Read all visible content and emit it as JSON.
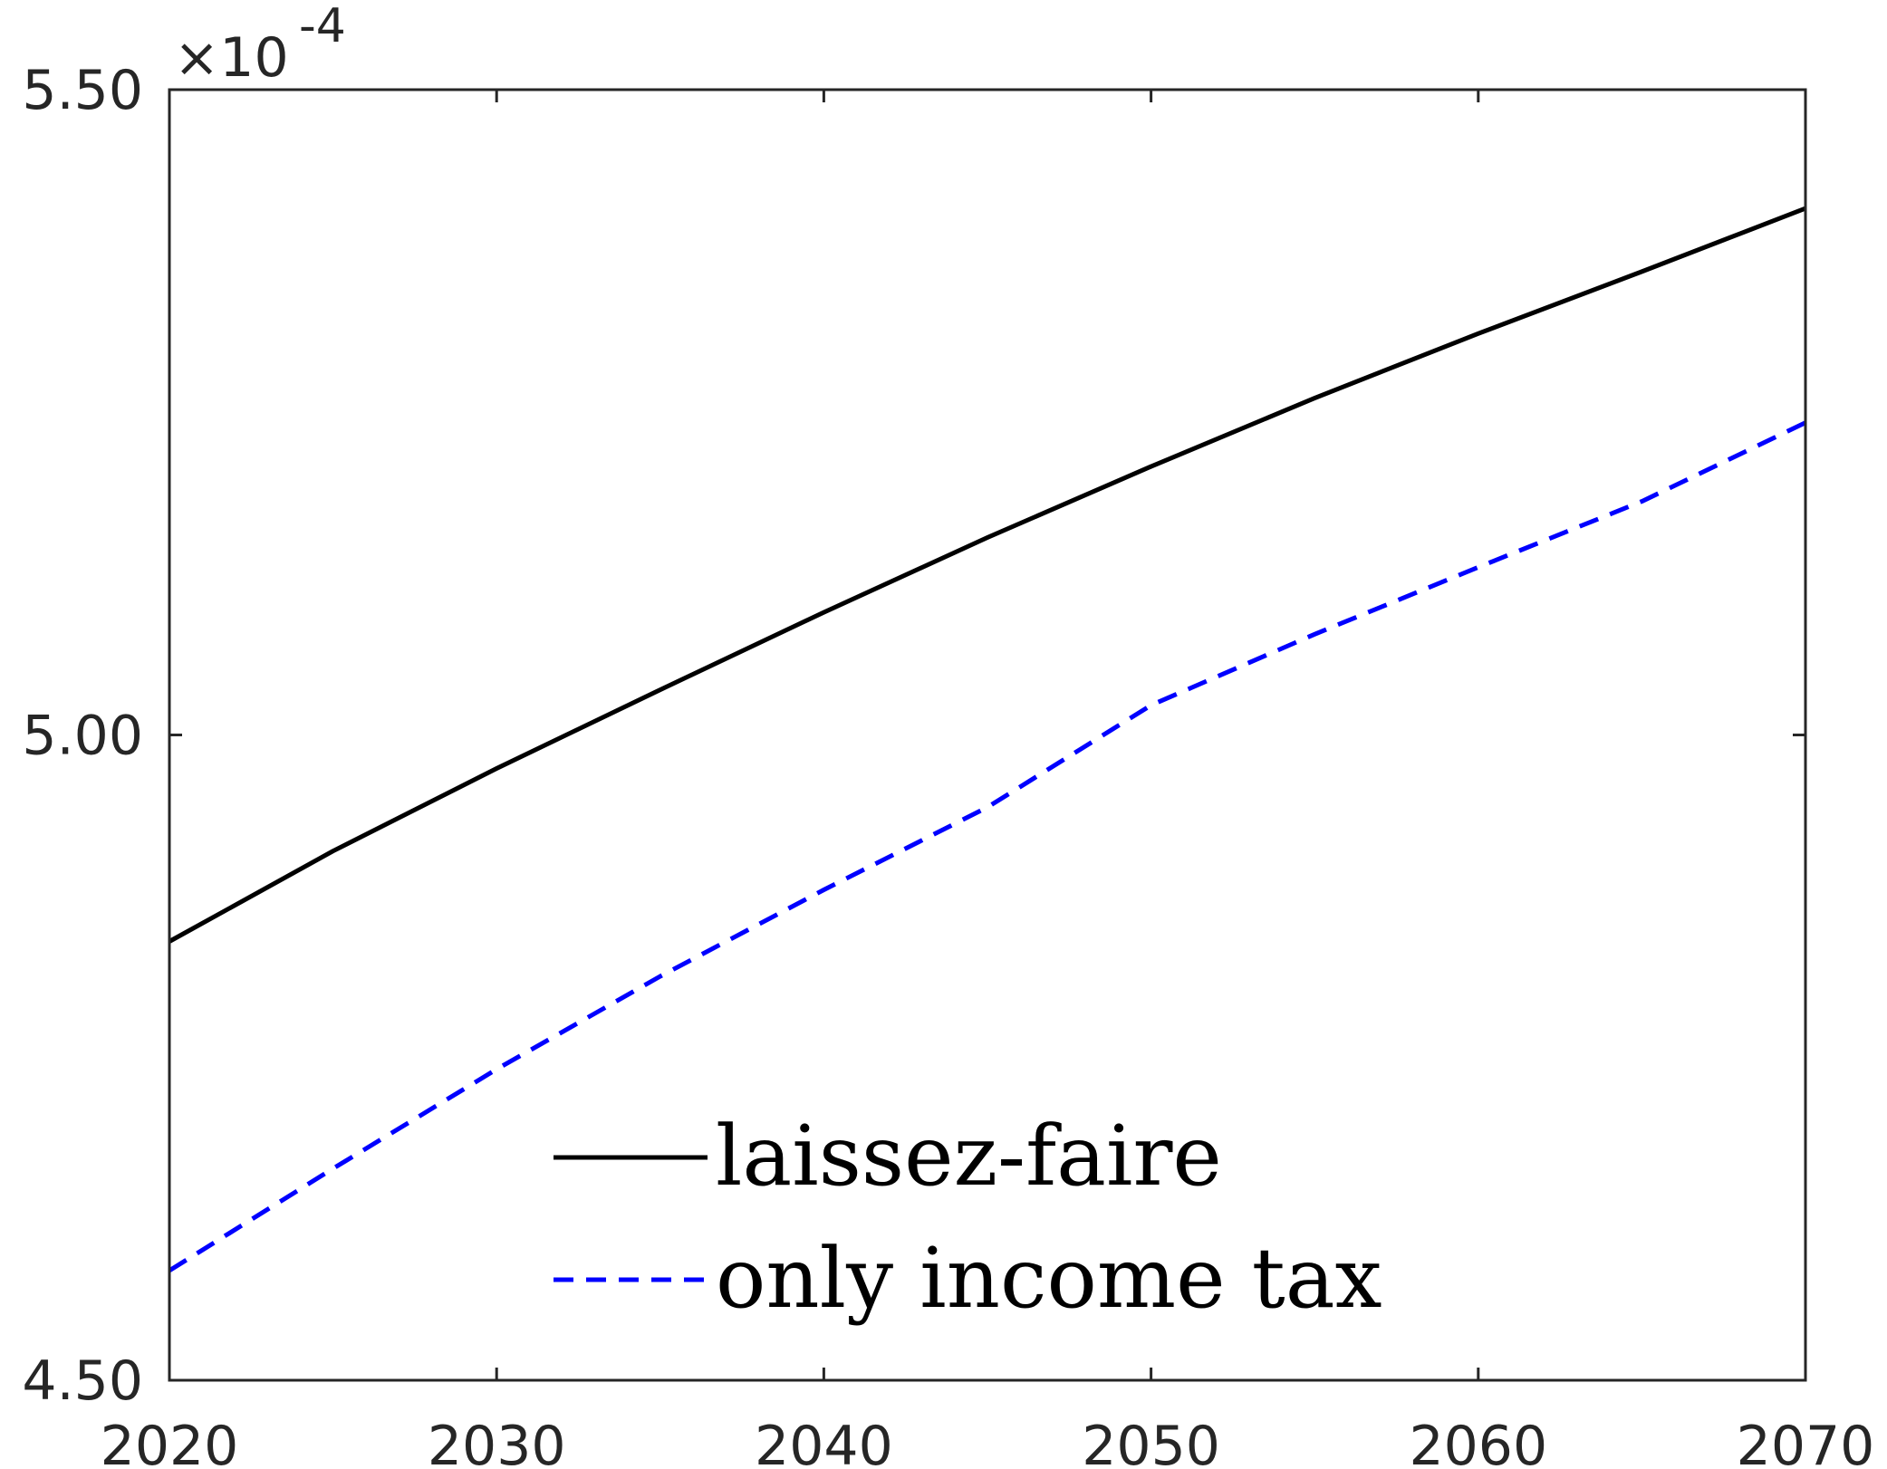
{
  "chart_data": {
    "type": "line",
    "title": "",
    "xlabel": "",
    "ylabel": "",
    "x": [
      2020,
      2025,
      2030,
      2035,
      2040,
      2045,
      2050,
      2055,
      2060,
      2065,
      2070
    ],
    "xlim": [
      2020,
      2070
    ],
    "ylim": [
      4.5,
      5.5
    ],
    "y_multiplier": {
      "base": "×10",
      "exponent": "-4"
    },
    "x_ticks": [
      2020,
      2030,
      2040,
      2050,
      2060,
      2070
    ],
    "x_tick_labels": [
      "2020",
      "2030",
      "2040",
      "2050",
      "2060",
      "2070"
    ],
    "y_ticks": [
      4.5,
      5.0,
      5.5
    ],
    "y_tick_labels": [
      "4.50",
      "5.00",
      "5.50"
    ],
    "grid": false,
    "legend_position": "bottom-center",
    "series": [
      {
        "name": "laissez-faire",
        "color": "#000000",
        "style": "solid",
        "values": [
          4.84,
          4.91,
          4.974,
          5.035,
          5.095,
          5.153,
          5.208,
          5.261,
          5.311,
          5.359,
          5.408
        ]
      },
      {
        "name": "only income tax",
        "color": "#0000ff",
        "style": "dashed",
        "values": [
          4.585,
          4.664,
          4.741,
          4.813,
          4.88,
          4.944,
          5.023,
          5.078,
          5.13,
          5.181,
          5.242
        ]
      }
    ]
  }
}
